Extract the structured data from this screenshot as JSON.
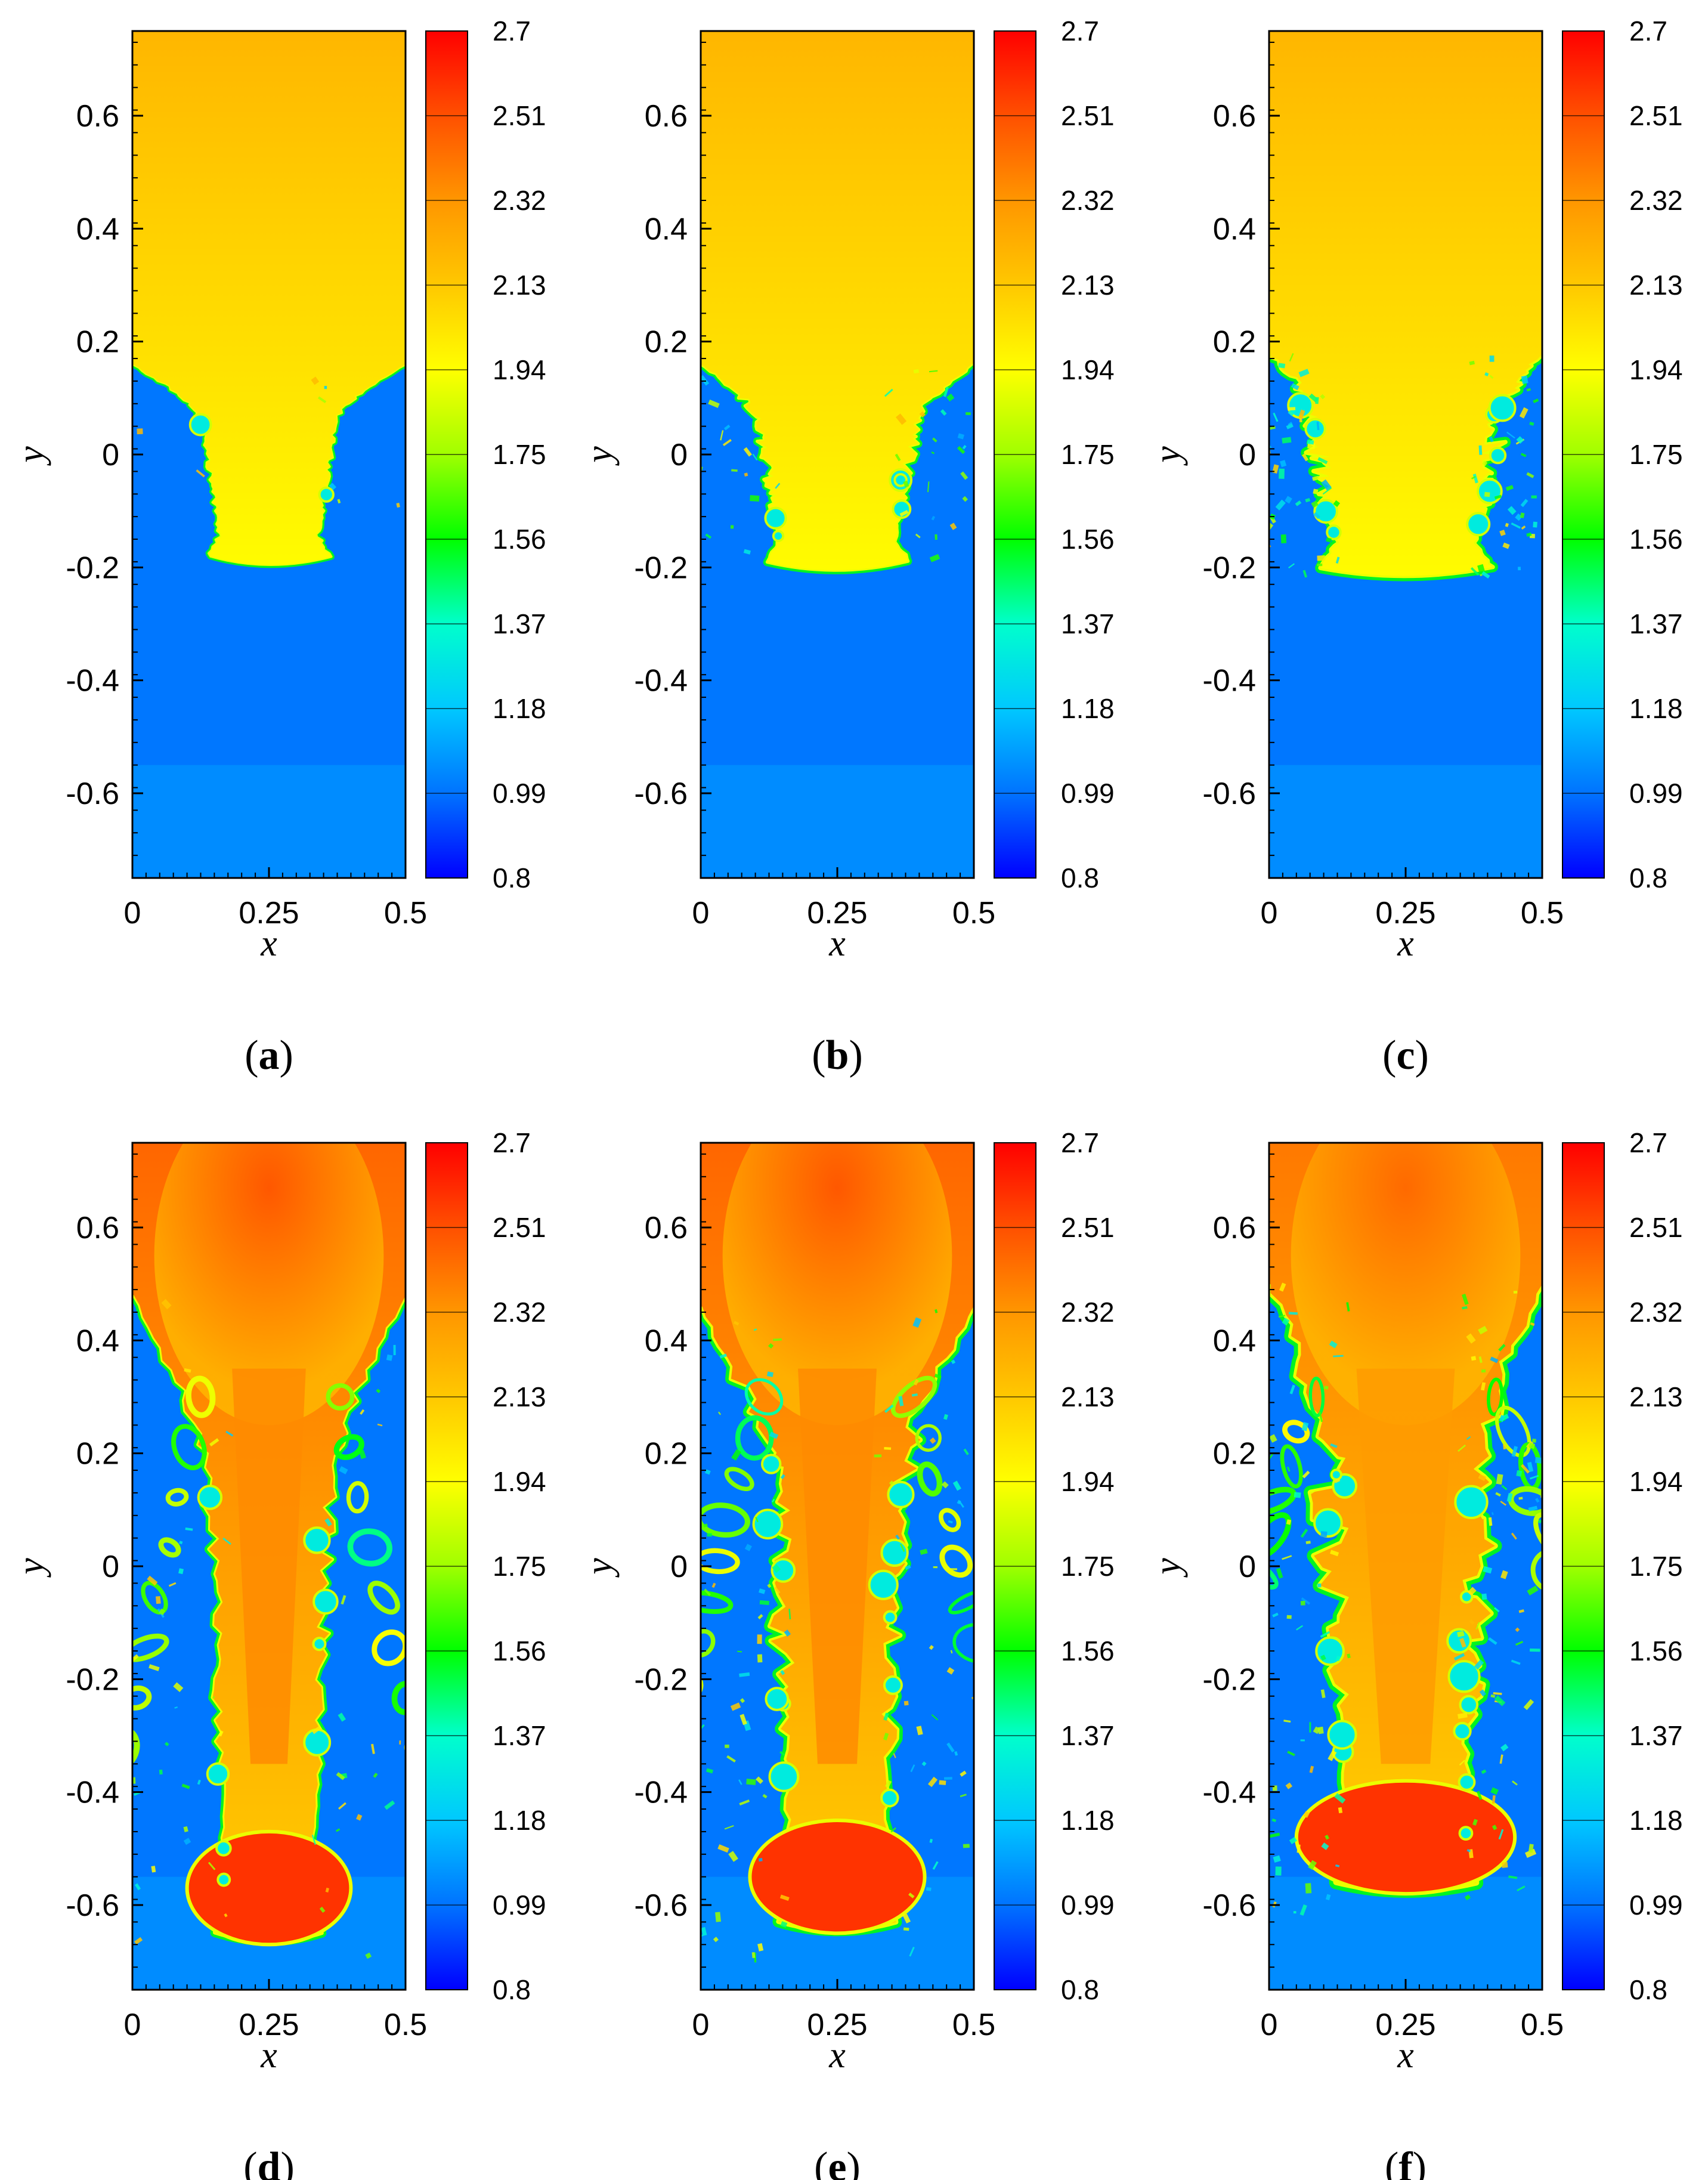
{
  "figure": {
    "colorscale": [
      "#0000ff",
      "#0073ff",
      "#00c8ff",
      "#00ffcc",
      "#00ff00",
      "#a0ff00",
      "#ffff00",
      "#ffc800",
      "#ff9600",
      "#ff5000",
      "#ff0000"
    ],
    "background_heavy": "#2454f0",
    "background_light": "#e8fb1a"
  },
  "chart_data": [
    {
      "type": "heatmap",
      "panel_label": "(a)",
      "xlabel": "x",
      "ylabel": "y",
      "xlim": [
        0,
        0.5
      ],
      "ylim": [
        -0.75,
        0.75
      ],
      "xticks": [
        "0",
        "0.25",
        "0.5"
      ],
      "yticks": [
        "0.6",
        "0.4",
        "0.2",
        "0",
        "-0.2",
        "-0.4",
        "-0.6"
      ],
      "colorbar": {
        "min": 0.8,
        "max": 2.7,
        "ticks": [
          "2.7",
          "2.51",
          "2.32",
          "2.13",
          "1.94",
          "1.75",
          "1.56",
          "1.37",
          "1.18",
          "0.99",
          "0.8"
        ]
      },
      "light_fluid_value": 2.05,
      "core_value": 2.2,
      "heavy_fluid_value": 1.0,
      "interface_edge_y": 0.16,
      "tip_y": -0.18,
      "stem_half_width": 0.085,
      "mixing": 0.05,
      "orange_fraction": 0.0,
      "vortex_count": 1
    },
    {
      "type": "heatmap",
      "panel_label": "(b)",
      "xlabel": "x",
      "ylabel": "y",
      "xlim": [
        0,
        0.5
      ],
      "ylim": [
        -0.75,
        0.75
      ],
      "xticks": [
        "0",
        "0.25",
        "0.5"
      ],
      "yticks": [
        "0.6",
        "0.4",
        "0.2",
        "0",
        "-0.2",
        "-0.4",
        "-0.6"
      ],
      "colorbar": {
        "min": 0.8,
        "max": 2.7,
        "ticks": [
          "2.7",
          "2.51",
          "2.32",
          "2.13",
          "1.94",
          "1.75",
          "1.56",
          "1.37",
          "1.18",
          "0.99",
          "0.8"
        ]
      },
      "light_fluid_value": 2.05,
      "core_value": 2.2,
      "heavy_fluid_value": 1.0,
      "interface_edge_y": 0.16,
      "tip_y": -0.19,
      "stem_half_width": 0.1,
      "mixing": 0.25,
      "orange_fraction": 0.0,
      "vortex_count": 3
    },
    {
      "type": "heatmap",
      "panel_label": "(c)",
      "xlabel": "x",
      "ylabel": "y",
      "xlim": [
        0,
        0.5
      ],
      "ylim": [
        -0.75,
        0.75
      ],
      "xticks": [
        "0",
        "0.25",
        "0.5"
      ],
      "yticks": [
        "0.6",
        "0.4",
        "0.2",
        "0",
        "-0.2",
        "-0.4",
        "-0.6"
      ],
      "colorbar": {
        "min": 0.8,
        "max": 2.7,
        "ticks": [
          "2.7",
          "2.51",
          "2.32",
          "2.13",
          "1.94",
          "1.75",
          "1.56",
          "1.37",
          "1.18",
          "0.99",
          "0.8"
        ]
      },
      "light_fluid_value": 2.05,
      "core_value": 2.2,
      "heavy_fluid_value": 1.0,
      "interface_edge_y": 0.18,
      "tip_y": -0.2,
      "stem_half_width": 0.12,
      "mixing": 0.55,
      "orange_fraction": 0.0,
      "vortex_count": 5
    },
    {
      "type": "heatmap",
      "panel_label": "(d)",
      "xlabel": "x",
      "ylabel": "y",
      "xlim": [
        0,
        0.5
      ],
      "ylim": [
        -0.75,
        0.75
      ],
      "xticks": [
        "0",
        "0.25",
        "0.5"
      ],
      "yticks": [
        "0.6",
        "0.4",
        "0.2",
        "0",
        "-0.2",
        "-0.4",
        "-0.6"
      ],
      "colorbar": {
        "min": 0.8,
        "max": 2.7,
        "ticks": [
          "2.7",
          "2.51",
          "2.32",
          "2.13",
          "1.94",
          "1.75",
          "1.56",
          "1.37",
          "1.18",
          "0.99",
          "0.8"
        ]
      },
      "light_fluid_value": 2.2,
      "core_value": 2.45,
      "heavy_fluid_value": 1.0,
      "interface_edge_y": 0.48,
      "tip_y": -0.65,
      "stem_half_width": 0.075,
      "mixing": 0.35,
      "orange_fraction": 0.55,
      "vortex_count": 4
    },
    {
      "type": "heatmap",
      "panel_label": "(e)",
      "xlabel": "x",
      "ylabel": "y",
      "xlim": [
        0,
        0.5
      ],
      "ylim": [
        -0.75,
        0.75
      ],
      "xticks": [
        "0",
        "0.25",
        "0.5"
      ],
      "yticks": [
        "0.6",
        "0.4",
        "0.2",
        "0",
        "-0.2",
        "-0.4",
        "-0.6"
      ],
      "colorbar": {
        "min": 0.8,
        "max": 2.7,
        "ticks": [
          "2.7",
          "2.51",
          "2.32",
          "2.13",
          "1.94",
          "1.75",
          "1.56",
          "1.37",
          "1.18",
          "0.99",
          "0.8"
        ]
      },
      "light_fluid_value": 2.2,
      "core_value": 2.45,
      "heavy_fluid_value": 1.0,
      "interface_edge_y": 0.46,
      "tip_y": -0.63,
      "stem_half_width": 0.08,
      "mixing": 0.7,
      "orange_fraction": 0.5,
      "vortex_count": 6
    },
    {
      "type": "heatmap",
      "panel_label": "(f)",
      "xlabel": "x",
      "ylabel": "y",
      "xlim": [
        0,
        0.5
      ],
      "ylim": [
        -0.75,
        0.75
      ],
      "xticks": [
        "0",
        "0.25",
        "0.5"
      ],
      "yticks": [
        "0.6",
        "0.4",
        "0.2",
        "0",
        "-0.2",
        "-0.4",
        "-0.6"
      ],
      "colorbar": {
        "min": 0.8,
        "max": 2.7,
        "ticks": [
          "2.7",
          "2.51",
          "2.32",
          "2.13",
          "1.94",
          "1.75",
          "1.56",
          "1.37",
          "1.18",
          "0.99",
          "0.8"
        ]
      },
      "light_fluid_value": 2.2,
      "core_value": 2.4,
      "heavy_fluid_value": 1.0,
      "interface_edge_y": 0.5,
      "tip_y": -0.56,
      "stem_half_width": 0.1,
      "mixing": 0.95,
      "orange_fraction": 0.45,
      "vortex_count": 8
    }
  ]
}
